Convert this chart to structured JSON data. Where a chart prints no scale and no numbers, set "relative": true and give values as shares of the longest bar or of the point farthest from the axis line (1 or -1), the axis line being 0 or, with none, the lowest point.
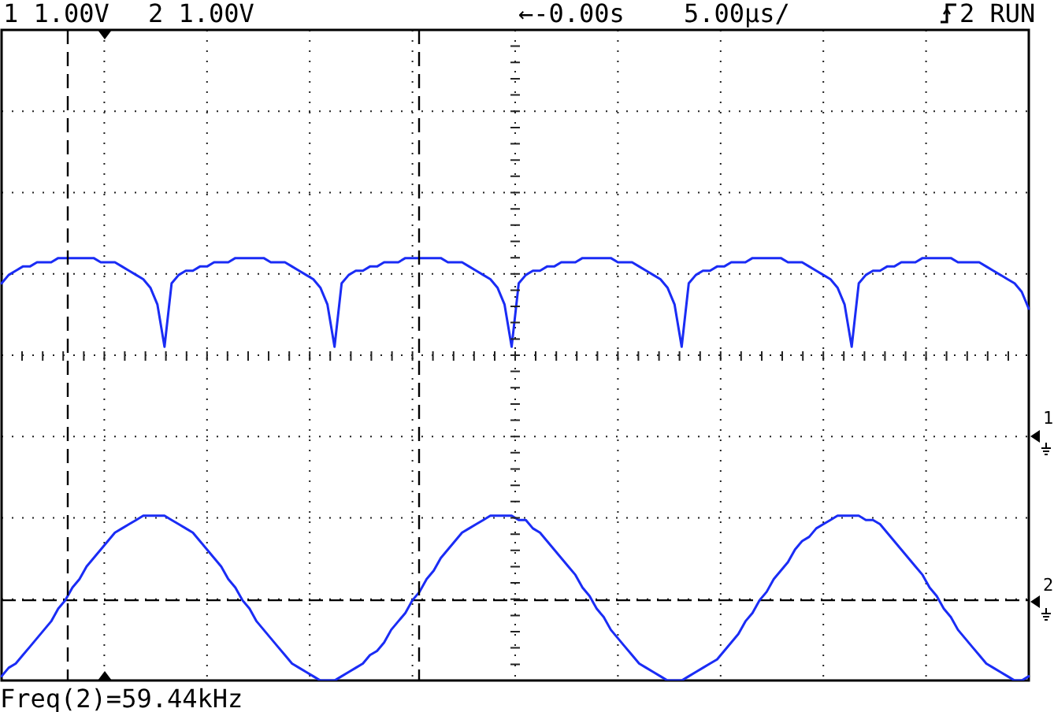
{
  "chart_data": {
    "type": "line",
    "relative": true,
    "grid": true,
    "marker": "none",
    "line_style": "solid",
    "categories": [
      null,
      null,
      null,
      null,
      null,
      null,
      null,
      null,
      null,
      null,
      null,
      null,
      null,
      null,
      null,
      null,
      null,
      null,
      null,
      null,
      null,
      null,
      null,
      null,
      null,
      null,
      null,
      null,
      null,
      null,
      null,
      null,
      null,
      null,
      null,
      null,
      null,
      null,
      null,
      null,
      null,
      null,
      null,
      null,
      null,
      null,
      null,
      null,
      null,
      null,
      null,
      null,
      null,
      null,
      null,
      null,
      null,
      null,
      null,
      null,
      null,
      null,
      null,
      null,
      null,
      null,
      null,
      null,
      null,
      null,
      null,
      null,
      null,
      null,
      null,
      null,
      null,
      null,
      null,
      null,
      null,
      null,
      null,
      null,
      null,
      null,
      null,
      null,
      null,
      null,
      null,
      null,
      null,
      null,
      null,
      null,
      null,
      null,
      null,
      null,
      null,
      null,
      null,
      null,
      null,
      null,
      null,
      null,
      null,
      null,
      null,
      null,
      null,
      null,
      null,
      null,
      null,
      null,
      null,
      null,
      null,
      null,
      null,
      null,
      null,
      null,
      null,
      null,
      null,
      null,
      null,
      null,
      null,
      null,
      null,
      null,
      null,
      null,
      null,
      null,
      null,
      null,
      null,
      null,
      null,
      null
    ],
    "series": [
      {
        "color": "#1a2cf5",
        "values": [
          0.94,
          0.96,
          0.97,
          0.98,
          0.98,
          0.99,
          0.99,
          0.99,
          1,
          1,
          1,
          1,
          1,
          1,
          0.99,
          0.99,
          0.99,
          0.98,
          0.97,
          0.96,
          0.95,
          0.93,
          0.89,
          0.79,
          0.94,
          0.96,
          0.97,
          0.97,
          0.98,
          0.98,
          0.99,
          0.99,
          0.99,
          1,
          1,
          1,
          1,
          1,
          0.99,
          0.99,
          0.99,
          0.98,
          0.97,
          0.96,
          0.95,
          0.93,
          0.89,
          0.79,
          0.94,
          0.96,
          0.97,
          0.97,
          0.98,
          0.98,
          0.99,
          0.99,
          0.99,
          1,
          1,
          1,
          1,
          1,
          1,
          0.99,
          0.99,
          0.99,
          0.98,
          0.97,
          0.96,
          0.95,
          0.93,
          0.89,
          0.79,
          0.94,
          0.96,
          0.97,
          0.97,
          0.98,
          0.98,
          0.99,
          0.99,
          0.99,
          1,
          1,
          1,
          1,
          1,
          0.99,
          0.99,
          0.99,
          0.98,
          0.97,
          0.96,
          0.95,
          0.93,
          0.89,
          0.79,
          0.94,
          0.96,
          0.97,
          0.97,
          0.98,
          0.98,
          0.99,
          0.99,
          0.99,
          1,
          1,
          1,
          1,
          1,
          0.99,
          0.99,
          0.99,
          0.98,
          0.97,
          0.96,
          0.95,
          0.93,
          0.89,
          0.79,
          0.94,
          0.96,
          0.97,
          0.97,
          0.98,
          0.98,
          0.99,
          0.99,
          0.99,
          1,
          1,
          1,
          1,
          1,
          0.99,
          0.99,
          0.99,
          0.99,
          0.98,
          0.97,
          0.96,
          0.95,
          0.94,
          0.92,
          0.88
        ]
      },
      {
        "color": "#1a2cf5",
        "values": [
          0.01,
          0.03,
          0.04,
          0.06,
          0.08,
          0.1,
          0.12,
          0.14,
          0.17,
          0.19,
          0.22,
          0.24,
          0.27,
          0.29,
          0.31,
          0.33,
          0.35,
          0.36,
          0.37,
          0.38,
          0.39,
          0.39,
          0.39,
          0.39,
          0.38,
          0.37,
          0.36,
          0.35,
          0.33,
          0.31,
          0.29,
          0.27,
          0.24,
          0.22,
          0.19,
          0.17,
          0.14,
          0.12,
          0.1,
          0.08,
          0.06,
          0.04,
          0.03,
          0.02,
          0.01,
          0,
          0,
          0,
          0.01,
          0.02,
          0.03,
          0.04,
          0.06,
          0.07,
          0.09,
          0.12,
          0.14,
          0.16,
          0.19,
          0.21,
          0.24,
          0.26,
          0.29,
          0.31,
          0.33,
          0.35,
          0.36,
          0.37,
          0.38,
          0.39,
          0.39,
          0.39,
          0.39,
          0.38,
          0.38,
          0.36,
          0.35,
          0.33,
          0.31,
          0.29,
          0.27,
          0.25,
          0.22,
          0.2,
          0.17,
          0.15,
          0.12,
          0.1,
          0.08,
          0.06,
          0.04,
          0.03,
          0.02,
          0.01,
          0,
          0,
          0,
          0.01,
          0.02,
          0.03,
          0.04,
          0.05,
          0.07,
          0.09,
          0.11,
          0.14,
          0.16,
          0.19,
          0.21,
          0.24,
          0.26,
          0.28,
          0.31,
          0.33,
          0.34,
          0.36,
          0.37,
          0.38,
          0.39,
          0.39,
          0.39,
          0.39,
          0.38,
          0.38,
          0.37,
          0.35,
          0.33,
          0.31,
          0.29,
          0.27,
          0.25,
          0.22,
          0.2,
          0.17,
          0.15,
          0.12,
          0.1,
          0.08,
          0.06,
          0.04,
          0.03,
          0.02,
          0.01,
          0,
          0,
          0.01
        ]
      }
    ],
    "ref_lines": [
      {
        "axis": "y",
        "value": 0.19,
        "line_style": "dashed",
        "color": "#000000"
      }
    ],
    "annotations": [
      "1 1.00V",
      "2 1.00V",
      "←-0.00s",
      "5.00µs/",
      "2 RUN",
      "Freq(2)=59.44kHz",
      "1",
      "2"
    ]
  }
}
